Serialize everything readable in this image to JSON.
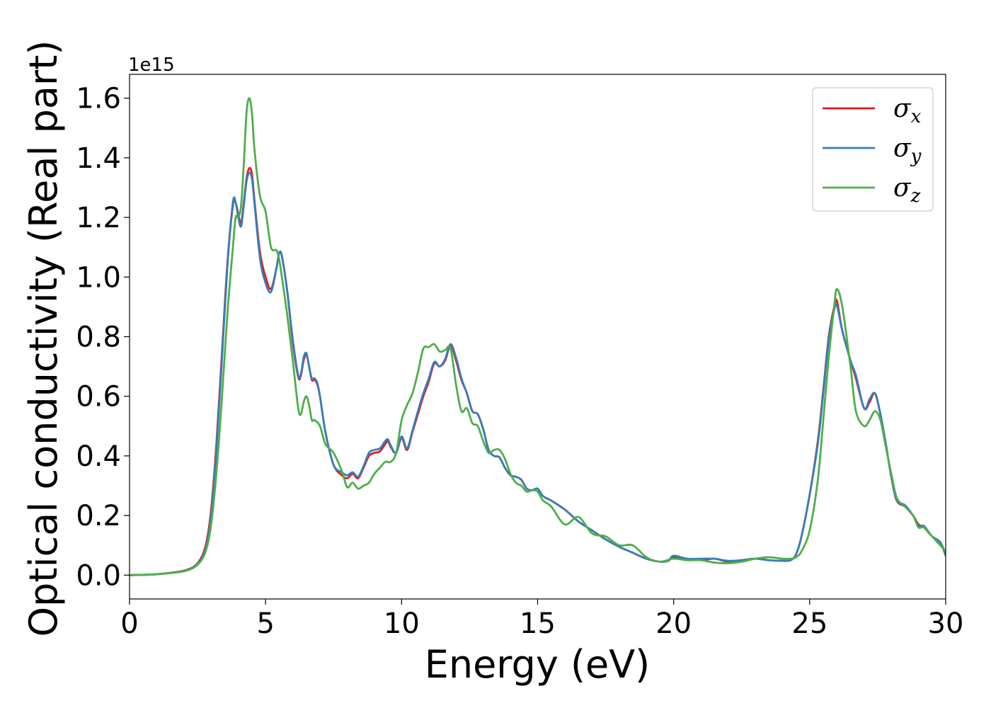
{
  "chart_data": {
    "type": "line",
    "xlabel": "Energy (eV)",
    "ylabel": "Optical conductivity (Real part)",
    "y_offset_label": "1e15",
    "xlim": [
      0,
      30
    ],
    "ylim": [
      -0.08,
      1.68
    ],
    "x_ticks": [
      0,
      5,
      10,
      15,
      20,
      25,
      30
    ],
    "x_tick_labels": [
      "0",
      "5",
      "10",
      "15",
      "20",
      "25",
      "30"
    ],
    "y_ticks": [
      0.0,
      0.2,
      0.4,
      0.6,
      0.8,
      1.0,
      1.2,
      1.4,
      1.6
    ],
    "y_tick_labels": [
      "0.0",
      "0.2",
      "0.4",
      "0.6",
      "0.8",
      "1.0",
      "1.2",
      "1.4",
      "1.6"
    ],
    "grid": false,
    "legend_position": "top-right",
    "series": [
      {
        "name": "σx",
        "symbol": "σ",
        "subscript": "x",
        "color": "#e41a1c",
        "x": [
          0,
          1,
          2,
          2.5,
          2.8,
          3.0,
          3.2,
          3.4,
          3.6,
          3.8,
          3.9,
          4.0,
          4.1,
          4.2,
          4.3,
          4.4,
          4.5,
          4.6,
          4.8,
          5.0,
          5.2,
          5.4,
          5.5,
          5.6,
          5.8,
          6.0,
          6.2,
          6.3,
          6.4,
          6.5,
          6.6,
          6.7,
          6.8,
          6.9,
          7.0,
          7.2,
          7.5,
          7.8,
          8.0,
          8.2,
          8.4,
          8.6,
          8.8,
          9.0,
          9.2,
          9.4,
          9.5,
          9.6,
          9.8,
          10.0,
          10.2,
          10.4,
          10.6,
          10.8,
          11.0,
          11.2,
          11.4,
          11.6,
          11.8,
          12.0,
          12.2,
          12.4,
          12.6,
          12.8,
          13.0,
          13.2,
          13.4,
          13.6,
          13.8,
          14.0,
          14.2,
          14.4,
          14.6,
          14.8,
          15.0,
          15.2,
          15.5,
          16.0,
          16.5,
          17.0,
          17.5,
          18.0,
          18.5,
          19.0,
          19.5,
          19.8,
          20.0,
          20.5,
          21.0,
          21.5,
          22.0,
          22.5,
          23.0,
          23.5,
          24.0,
          24.3,
          24.5,
          24.7,
          25.0,
          25.3,
          25.5,
          25.7,
          25.9,
          26.0,
          26.2,
          26.5,
          26.7,
          27.0,
          27.2,
          27.4,
          27.6,
          27.8,
          28.0,
          28.2,
          28.5,
          28.8,
          29.0,
          29.2,
          29.5,
          29.8,
          30.0
        ],
        "y": [
          0.0,
          0.003,
          0.015,
          0.04,
          0.1,
          0.22,
          0.45,
          0.75,
          1.05,
          1.24,
          1.25,
          1.21,
          1.18,
          1.25,
          1.33,
          1.365,
          1.345,
          1.25,
          1.08,
          1.0,
          0.96,
          1.03,
          1.08,
          1.07,
          0.95,
          0.78,
          0.665,
          0.67,
          0.72,
          0.74,
          0.7,
          0.655,
          0.655,
          0.64,
          0.6,
          0.48,
          0.37,
          0.335,
          0.325,
          0.34,
          0.325,
          0.36,
          0.4,
          0.41,
          0.415,
          0.44,
          0.45,
          0.43,
          0.41,
          0.46,
          0.42,
          0.48,
          0.54,
          0.6,
          0.65,
          0.71,
          0.7,
          0.72,
          0.77,
          0.72,
          0.655,
          0.61,
          0.55,
          0.54,
          0.49,
          0.42,
          0.4,
          0.395,
          0.36,
          0.335,
          0.33,
          0.32,
          0.29,
          0.285,
          0.29,
          0.265,
          0.25,
          0.22,
          0.18,
          0.15,
          0.12,
          0.095,
          0.075,
          0.055,
          0.045,
          0.048,
          0.06,
          0.055,
          0.05,
          0.055,
          0.045,
          0.05,
          0.055,
          0.05,
          0.048,
          0.05,
          0.07,
          0.13,
          0.27,
          0.45,
          0.62,
          0.8,
          0.9,
          0.92,
          0.82,
          0.72,
          0.66,
          0.56,
          0.58,
          0.61,
          0.54,
          0.44,
          0.33,
          0.25,
          0.23,
          0.2,
          0.17,
          0.16,
          0.13,
          0.11,
          0.07
        ]
      },
      {
        "name": "σy",
        "symbol": "σ",
        "subscript": "y",
        "color": "#377eb8",
        "x": [
          0,
          1,
          2,
          2.5,
          2.8,
          3.0,
          3.2,
          3.4,
          3.6,
          3.8,
          3.9,
          4.0,
          4.1,
          4.2,
          4.3,
          4.4,
          4.5,
          4.6,
          4.8,
          5.0,
          5.2,
          5.4,
          5.5,
          5.6,
          5.8,
          6.0,
          6.2,
          6.3,
          6.4,
          6.5,
          6.6,
          6.7,
          6.8,
          6.9,
          7.0,
          7.2,
          7.5,
          7.8,
          8.0,
          8.2,
          8.4,
          8.6,
          8.8,
          9.0,
          9.2,
          9.4,
          9.5,
          9.6,
          9.8,
          10.0,
          10.2,
          10.4,
          10.6,
          10.8,
          11.0,
          11.2,
          11.4,
          11.6,
          11.8,
          12.0,
          12.2,
          12.4,
          12.6,
          12.8,
          13.0,
          13.2,
          13.4,
          13.6,
          13.8,
          14.0,
          14.2,
          14.4,
          14.6,
          14.8,
          15.0,
          15.2,
          15.5,
          16.0,
          16.5,
          17.0,
          17.5,
          18.0,
          18.5,
          19.0,
          19.5,
          19.8,
          20.0,
          20.5,
          21.0,
          21.5,
          22.0,
          22.5,
          23.0,
          23.5,
          24.0,
          24.3,
          24.5,
          24.7,
          25.0,
          25.3,
          25.5,
          25.7,
          25.9,
          26.0,
          26.2,
          26.5,
          26.7,
          27.0,
          27.2,
          27.4,
          27.6,
          27.8,
          28.0,
          28.2,
          28.5,
          28.8,
          29.0,
          29.2,
          29.5,
          29.8,
          30.0
        ],
        "y": [
          0.0,
          0.003,
          0.014,
          0.038,
          0.09,
          0.2,
          0.43,
          0.73,
          1.04,
          1.25,
          1.25,
          1.2,
          1.17,
          1.24,
          1.32,
          1.35,
          1.33,
          1.24,
          1.06,
          0.98,
          0.95,
          1.03,
          1.08,
          1.07,
          0.95,
          0.79,
          0.67,
          0.675,
          0.73,
          0.745,
          0.7,
          0.66,
          0.66,
          0.645,
          0.6,
          0.48,
          0.37,
          0.345,
          0.335,
          0.345,
          0.33,
          0.365,
          0.41,
          0.42,
          0.425,
          0.45,
          0.455,
          0.435,
          0.41,
          0.465,
          0.425,
          0.485,
          0.55,
          0.61,
          0.66,
          0.715,
          0.7,
          0.725,
          0.775,
          0.73,
          0.66,
          0.61,
          0.55,
          0.54,
          0.49,
          0.42,
          0.4,
          0.395,
          0.36,
          0.335,
          0.33,
          0.32,
          0.29,
          0.285,
          0.29,
          0.265,
          0.25,
          0.22,
          0.18,
          0.15,
          0.12,
          0.095,
          0.075,
          0.055,
          0.045,
          0.048,
          0.065,
          0.055,
          0.055,
          0.055,
          0.048,
          0.05,
          0.055,
          0.05,
          0.048,
          0.05,
          0.07,
          0.13,
          0.27,
          0.44,
          0.61,
          0.79,
          0.89,
          0.905,
          0.82,
          0.72,
          0.67,
          0.56,
          0.59,
          0.61,
          0.54,
          0.44,
          0.33,
          0.25,
          0.235,
          0.2,
          0.165,
          0.165,
          0.13,
          0.11,
          0.065
        ]
      },
      {
        "name": "σz",
        "symbol": "σ",
        "subscript": "z",
        "color": "#4daf4a",
        "x": [
          0,
          1,
          2,
          2.5,
          2.8,
          3.0,
          3.2,
          3.4,
          3.6,
          3.8,
          3.9,
          4.0,
          4.1,
          4.2,
          4.3,
          4.4,
          4.5,
          4.6,
          4.8,
          5.0,
          5.2,
          5.4,
          5.5,
          5.6,
          5.8,
          6.0,
          6.2,
          6.3,
          6.4,
          6.5,
          6.6,
          6.7,
          6.8,
          7.0,
          7.2,
          7.5,
          7.8,
          8.0,
          8.2,
          8.4,
          8.6,
          8.8,
          9.0,
          9.2,
          9.4,
          9.6,
          9.8,
          10.0,
          10.2,
          10.4,
          10.6,
          10.8,
          11.0,
          11.2,
          11.4,
          11.6,
          11.8,
          12.0,
          12.2,
          12.4,
          12.6,
          12.8,
          13.0,
          13.2,
          13.4,
          13.6,
          13.8,
          14.0,
          14.2,
          14.4,
          14.6,
          14.8,
          15.0,
          15.2,
          15.5,
          16.0,
          16.5,
          17.0,
          17.5,
          18.0,
          18.5,
          19.0,
          19.5,
          20.0,
          20.5,
          21.0,
          21.5,
          22.0,
          22.5,
          23.0,
          23.5,
          24.0,
          24.3,
          24.5,
          24.7,
          25.0,
          25.3,
          25.5,
          25.7,
          25.9,
          26.0,
          26.2,
          26.5,
          26.7,
          27.0,
          27.2,
          27.4,
          27.6,
          27.8,
          28.0,
          28.2,
          28.5,
          28.8,
          29.0,
          29.2,
          29.5,
          29.8,
          30.0
        ],
        "y": [
          0.0,
          0.003,
          0.013,
          0.035,
          0.08,
          0.17,
          0.35,
          0.6,
          0.88,
          1.1,
          1.2,
          1.2,
          1.24,
          1.38,
          1.55,
          1.6,
          1.55,
          1.42,
          1.27,
          1.22,
          1.1,
          1.09,
          1.06,
          1.0,
          0.87,
          0.72,
          0.56,
          0.54,
          0.58,
          0.6,
          0.57,
          0.52,
          0.52,
          0.5,
          0.44,
          0.41,
          0.35,
          0.295,
          0.31,
          0.29,
          0.3,
          0.31,
          0.34,
          0.36,
          0.38,
          0.38,
          0.41,
          0.52,
          0.57,
          0.61,
          0.68,
          0.76,
          0.765,
          0.775,
          0.75,
          0.755,
          0.76,
          0.64,
          0.55,
          0.56,
          0.51,
          0.5,
          0.45,
          0.41,
          0.42,
          0.42,
          0.39,
          0.34,
          0.31,
          0.3,
          0.28,
          0.285,
          0.28,
          0.25,
          0.23,
          0.17,
          0.195,
          0.14,
          0.13,
          0.1,
          0.1,
          0.06,
          0.045,
          0.055,
          0.05,
          0.05,
          0.042,
          0.04,
          0.045,
          0.055,
          0.06,
          0.055,
          0.055,
          0.06,
          0.08,
          0.15,
          0.32,
          0.52,
          0.73,
          0.9,
          0.96,
          0.9,
          0.7,
          0.55,
          0.5,
          0.52,
          0.55,
          0.52,
          0.43,
          0.34,
          0.26,
          0.23,
          0.2,
          0.16,
          0.16,
          0.13,
          0.1,
          0.08
        ]
      }
    ]
  }
}
